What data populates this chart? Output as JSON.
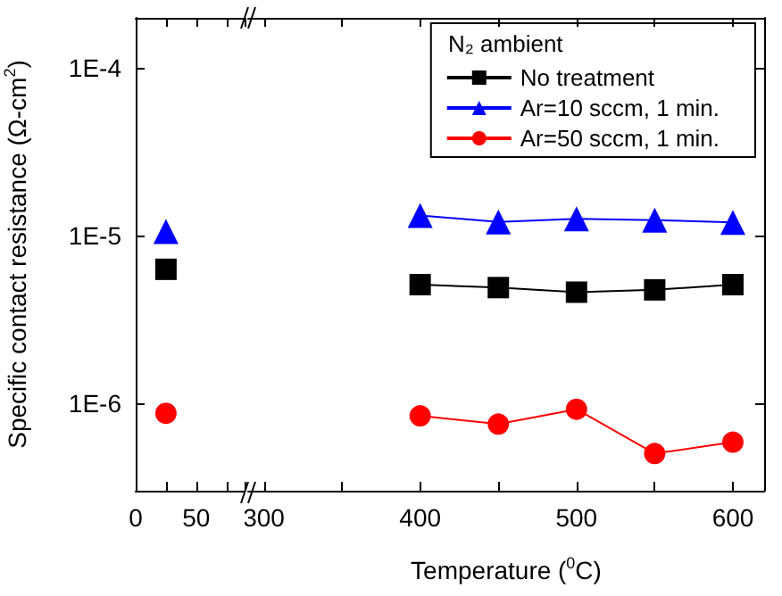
{
  "chart_data": [
    {
      "type": "line",
      "ylabel": "Specific contact resistance (Ω-cm$^{2}$)",
      "x": [
        25
      ],
      "series": [
        {
          "color": "#000000",
          "marker": "square",
          "values": [
            6.3e-06
          ]
        },
        {
          "color": "#0000ff",
          "marker": "triangle",
          "values": [
            1.06e-05
          ]
        },
        {
          "color": "#ff0000",
          "marker": "circle",
          "values": [
            8.7e-07
          ]
        }
      ],
      "xlim": [
        0,
        90
      ],
      "xticks": [
        0,
        {
          "value": 25,
          "label": null
        },
        50,
        {
          "value": 75,
          "label": null
        }
      ],
      "ylim": [
        3e-07,
        0.0002
      ],
      "yticks": [
        {
          "value": 1e-06,
          "label": "1E-6"
        },
        {
          "value": 1e-05,
          "label": "1E-5"
        },
        {
          "value": 0.0001,
          "label": "1E-4"
        }
      ],
      "log": "y",
      "grid": false,
      "line_style": "solid"
    },
    {
      "type": "line",
      "xlabel": "Temperature ($^{0}$C)",
      "legend_title": "N₂ ambient",
      "x": [
        400,
        450,
        500,
        550,
        600
      ],
      "series": [
        {
          "name": "No treatment",
          "color": "#000000",
          "marker": "square",
          "values": [
            5.1e-06,
            4.9e-06,
            4.6e-06,
            4.75e-06,
            5.1e-06
          ]
        },
        {
          "name": "Ar=10 sccm, 1 min.",
          "color": "#0000ff",
          "marker": "triangle",
          "values": [
            1.32e-05,
            1.21e-05,
            1.26e-05,
            1.24e-05,
            1.2e-05
          ]
        },
        {
          "name": "Ar=50 sccm, 1 min.",
          "color": "#ff0000",
          "marker": "circle",
          "values": [
            8.4e-07,
            7.5e-07,
            9.2e-07,
            5e-07,
            5.85e-07
          ]
        }
      ],
      "xlim": [
        290,
        620
      ],
      "xticks": [
        300,
        {
          "value": 350,
          "label": null
        },
        400,
        {
          "value": 450,
          "label": null
        },
        500,
        {
          "value": 550,
          "label": null
        },
        600
      ],
      "ylim": [
        3e-07,
        0.0002
      ],
      "yticks": [
        {
          "value": 1e-06,
          "label": null
        },
        {
          "value": 1e-05,
          "label": null
        },
        {
          "value": 0.0001,
          "label": null
        }
      ],
      "log": "y",
      "legend": "top right",
      "tick_labels": "x",
      "grid": false,
      "line_style": "solid"
    }
  ]
}
